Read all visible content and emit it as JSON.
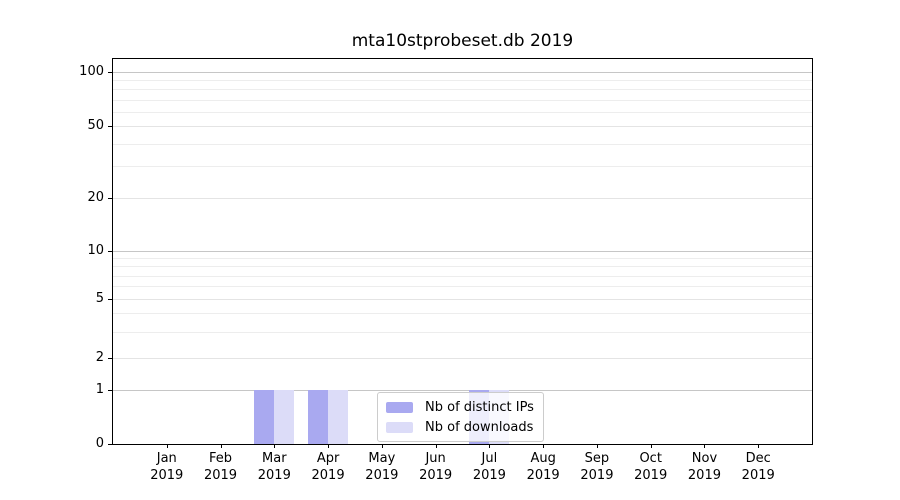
{
  "chart_data": {
    "type": "bar",
    "title": "mta10stprobeset.db 2019",
    "x_axis": {
      "categories": [
        "Jan",
        "Feb",
        "Mar",
        "Apr",
        "May",
        "Jun",
        "Jul",
        "Aug",
        "Sep",
        "Oct",
        "Nov",
        "Dec"
      ],
      "year_line": "2019"
    },
    "y_axis": {
      "labeled_ticks": [
        0,
        1,
        2,
        5,
        10,
        20,
        50,
        100
      ],
      "decade_gridlines": [
        1,
        10,
        100
      ],
      "minor_gridlines": [
        3,
        4,
        6,
        7,
        8,
        9,
        30,
        40,
        60,
        70,
        80,
        90
      ],
      "scale": "quasi-log with linear 0-1 segment",
      "range": [
        0,
        113
      ]
    },
    "series": [
      {
        "name": "Nb of distinct IPs",
        "color": "#a9a9f0",
        "values": [
          0,
          0,
          1,
          1,
          0,
          0,
          1,
          0,
          0,
          0,
          0,
          0
        ]
      },
      {
        "name": "Nb of downloads",
        "color": "#dcdcf8",
        "values": [
          0,
          0,
          1,
          1,
          0,
          0,
          1,
          0,
          0,
          0,
          0,
          0
        ]
      }
    ],
    "legend": {
      "position": "lower center",
      "entries": [
        "Nb of distinct IPs",
        "Nb of downloads"
      ]
    },
    "grid": "horizontal only",
    "background": "#ffffff"
  }
}
